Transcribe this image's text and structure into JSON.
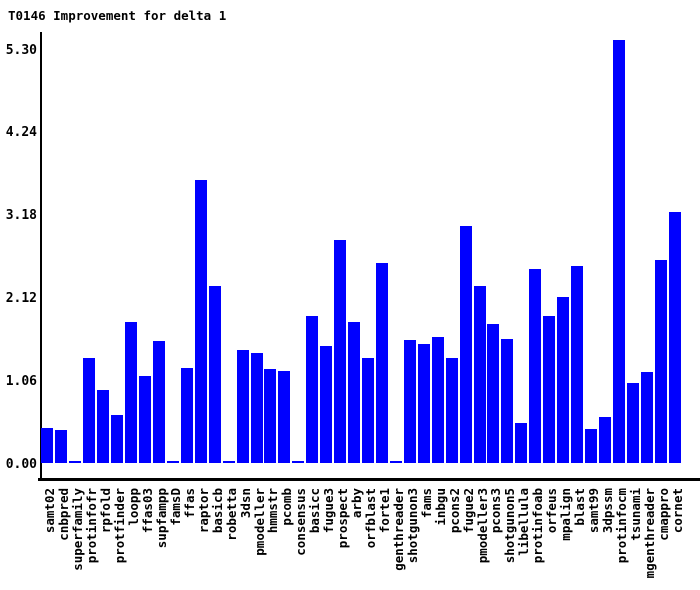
{
  "chart_data": {
    "type": "bar",
    "title": "T0146 Improvement for delta 1",
    "categories": [
      "samt02",
      "cnbpred",
      "superfamily",
      "protinfofr",
      "rpfold",
      "protfinder",
      "loopp",
      "ffas03",
      "supfampp",
      "famsD",
      "ffas",
      "raptor",
      "basicb",
      "robetta",
      "3dsn",
      "pmodeller",
      "hmmstr",
      "pcomb",
      "consensus",
      "basicc",
      "fugue3",
      "prospect",
      "arby",
      "orfblast",
      "forte1",
      "genthreader",
      "shotgunon3",
      "fams",
      "inbgu",
      "pcons2",
      "fugue2",
      "pmodeller3",
      "pcons3",
      "shotgunon5",
      "libellula",
      "protinfoab",
      "orfeus",
      "mpalign",
      "blast",
      "samt99",
      "3dpssm",
      "protinfocm",
      "tsunami",
      "mgenthreader",
      "cmappro",
      "cornet"
    ],
    "values": [
      0.45,
      0.42,
      0.03,
      1.35,
      0.94,
      0.61,
      1.81,
      1.12,
      1.56,
      0.03,
      1.21,
      3.62,
      2.26,
      0.03,
      1.45,
      1.41,
      1.2,
      1.18,
      0.03,
      1.88,
      1.5,
      2.86,
      1.81,
      1.34,
      2.56,
      0.03,
      1.57,
      1.53,
      1.61,
      1.34,
      3.03,
      2.27,
      1.78,
      1.59,
      0.51,
      2.49,
      1.88,
      2.13,
      2.52,
      0.43,
      0.59,
      5.41,
      1.03,
      1.17,
      2.6,
      3.21
    ],
    "ytick_labels": [
      "0.00",
      "1.06",
      "2.12",
      "3.18",
      "4.24",
      "5.30"
    ],
    "yticks": [
      0.0,
      1.06,
      2.12,
      3.18,
      4.24,
      5.3
    ],
    "ylim": [
      0,
      5.41
    ],
    "xlabel": "",
    "ylabel": "",
    "grid": false,
    "legend": null,
    "bar_color": "#0000ff",
    "axis_color": "#000000",
    "background_color": "#ffffff",
    "x_label_rotation_deg": -90
  }
}
